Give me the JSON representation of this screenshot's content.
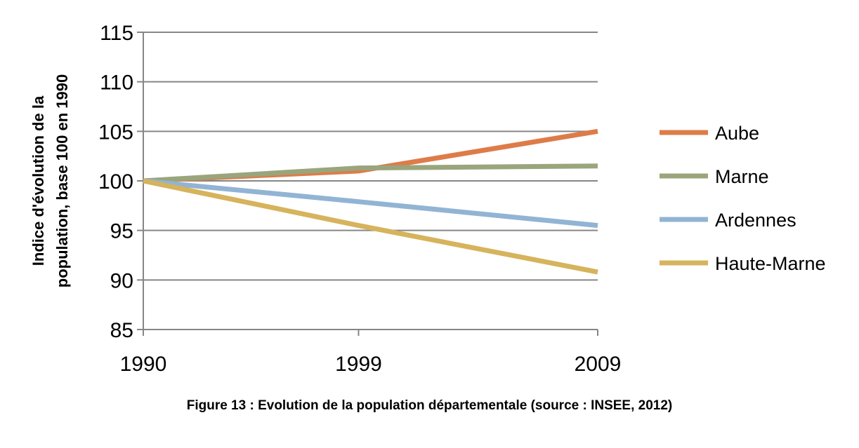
{
  "chart_data": {
    "type": "line",
    "categories": [
      "1990",
      "1999",
      "2009"
    ],
    "x": [
      1990,
      1999,
      2009
    ],
    "ylabel_line1": "Indice d'évolution de la",
    "ylabel_line2": "population, base 100 en  1990",
    "xlabel": "",
    "ylim": [
      85,
      115
    ],
    "yticks": [
      85,
      90,
      95,
      100,
      105,
      110,
      115
    ],
    "grid": true,
    "legend_position": "right",
    "series": [
      {
        "name": "Aube",
        "color": "#DD7C49",
        "values": [
          100,
          101.0,
          105.0
        ]
      },
      {
        "name": "Marne",
        "color": "#9AA57C",
        "values": [
          100,
          101.3,
          101.5
        ]
      },
      {
        "name": "Ardennes",
        "color": "#92B4D4",
        "values": [
          100,
          97.9,
          95.5
        ]
      },
      {
        "name": "Haute-Marne",
        "color": "#D6B35C",
        "values": [
          100,
          95.5,
          90.8
        ]
      }
    ]
  },
  "caption": "Figure 13 : Evolution de la population départementale (source : INSEE, 2012)"
}
